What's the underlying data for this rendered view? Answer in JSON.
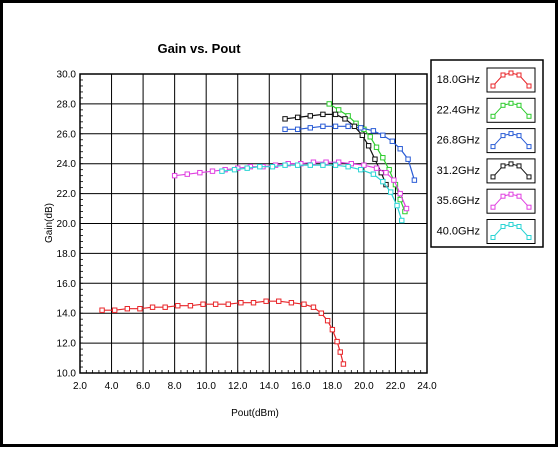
{
  "chart_data": {
    "type": "line",
    "title": "Gain vs. Pout",
    "xlabel": "Pout(dBm)",
    "ylabel": "Gain(dB)",
    "xlim": [
      2.0,
      24.0
    ],
    "ylim": [
      10.0,
      30.0
    ],
    "xticks": [
      "2.0",
      "4.0",
      "6.0",
      "8.0",
      "10.0",
      "12.0",
      "14.0",
      "16.0",
      "18.0",
      "20.0",
      "22.0",
      "24.0"
    ],
    "yticks": [
      "10.0",
      "12.0",
      "14.0",
      "16.0",
      "18.0",
      "20.0",
      "22.0",
      "24.0",
      "26.0",
      "28.0",
      "30.0"
    ],
    "grid": true,
    "legend_position": "right",
    "series": [
      {
        "name": "18.0GHz",
        "color": "#e8262a",
        "points": [
          [
            3.4,
            14.2
          ],
          [
            4.2,
            14.2
          ],
          [
            5.0,
            14.3
          ],
          [
            5.8,
            14.3
          ],
          [
            6.6,
            14.4
          ],
          [
            7.4,
            14.4
          ],
          [
            8.2,
            14.5
          ],
          [
            9.0,
            14.5
          ],
          [
            9.8,
            14.6
          ],
          [
            10.6,
            14.6
          ],
          [
            11.4,
            14.6
          ],
          [
            12.2,
            14.7
          ],
          [
            13.0,
            14.7
          ],
          [
            13.8,
            14.8
          ],
          [
            14.6,
            14.8
          ],
          [
            15.4,
            14.7
          ],
          [
            16.2,
            14.6
          ],
          [
            16.8,
            14.4
          ],
          [
            17.3,
            14.0
          ],
          [
            17.7,
            13.5
          ],
          [
            18.0,
            12.9
          ],
          [
            18.3,
            12.1
          ],
          [
            18.5,
            11.4
          ],
          [
            18.7,
            10.6
          ]
        ]
      },
      {
        "name": "22.4GHz",
        "color": "#2ecc2e",
        "points": [
          [
            17.8,
            28.0
          ],
          [
            18.4,
            27.6
          ],
          [
            19.0,
            27.2
          ],
          [
            19.5,
            26.7
          ],
          [
            20.0,
            26.3
          ],
          [
            20.4,
            25.8
          ],
          [
            20.8,
            25.1
          ],
          [
            21.2,
            24.4
          ],
          [
            21.6,
            23.6
          ],
          [
            22.0,
            22.6
          ],
          [
            22.3,
            21.6
          ],
          [
            22.6,
            20.8
          ]
        ]
      },
      {
        "name": "26.8GHz",
        "color": "#2a5cd6",
        "points": [
          [
            15.0,
            26.3
          ],
          [
            15.8,
            26.3
          ],
          [
            16.6,
            26.4
          ],
          [
            17.4,
            26.5
          ],
          [
            18.2,
            26.5
          ],
          [
            19.0,
            26.5
          ],
          [
            19.8,
            26.4
          ],
          [
            20.6,
            26.2
          ],
          [
            21.2,
            25.9
          ],
          [
            21.8,
            25.5
          ],
          [
            22.3,
            25.0
          ],
          [
            22.8,
            24.3
          ],
          [
            23.2,
            22.9
          ]
        ]
      },
      {
        "name": "31.2GHz",
        "color": "#111111",
        "points": [
          [
            15.0,
            27.0
          ],
          [
            15.8,
            27.1
          ],
          [
            16.6,
            27.2
          ],
          [
            17.4,
            27.3
          ],
          [
            18.2,
            27.3
          ],
          [
            18.8,
            27.0
          ],
          [
            19.4,
            26.5
          ],
          [
            19.9,
            25.9
          ],
          [
            20.3,
            25.2
          ],
          [
            20.7,
            24.3
          ],
          [
            21.1,
            23.4
          ],
          [
            21.4,
            22.6
          ]
        ]
      },
      {
        "name": "35.6GHz",
        "color": "#e040e0",
        "points": [
          [
            8.0,
            23.2
          ],
          [
            8.8,
            23.3
          ],
          [
            9.6,
            23.4
          ],
          [
            10.4,
            23.5
          ],
          [
            11.2,
            23.6
          ],
          [
            12.0,
            23.7
          ],
          [
            12.8,
            23.8
          ],
          [
            13.6,
            23.8
          ],
          [
            14.4,
            23.9
          ],
          [
            15.2,
            24.0
          ],
          [
            16.0,
            24.0
          ],
          [
            16.8,
            24.1
          ],
          [
            17.6,
            24.1
          ],
          [
            18.4,
            24.1
          ],
          [
            19.2,
            24.0
          ],
          [
            20.0,
            23.9
          ],
          [
            20.8,
            23.7
          ],
          [
            21.4,
            23.4
          ],
          [
            21.9,
            22.9
          ],
          [
            22.3,
            22.0
          ],
          [
            22.7,
            21.0
          ]
        ]
      },
      {
        "name": "40.0GHz",
        "color": "#2cd4d4",
        "points": [
          [
            11.0,
            23.5
          ],
          [
            11.8,
            23.6
          ],
          [
            12.6,
            23.7
          ],
          [
            13.4,
            23.8
          ],
          [
            14.2,
            23.8
          ],
          [
            15.0,
            23.9
          ],
          [
            15.8,
            23.9
          ],
          [
            16.6,
            23.9
          ],
          [
            17.4,
            23.9
          ],
          [
            18.2,
            23.9
          ],
          [
            19.0,
            23.8
          ],
          [
            19.8,
            23.6
          ],
          [
            20.6,
            23.3
          ],
          [
            21.2,
            22.8
          ],
          [
            21.7,
            22.1
          ],
          [
            22.1,
            21.2
          ],
          [
            22.4,
            20.2
          ]
        ]
      }
    ]
  }
}
